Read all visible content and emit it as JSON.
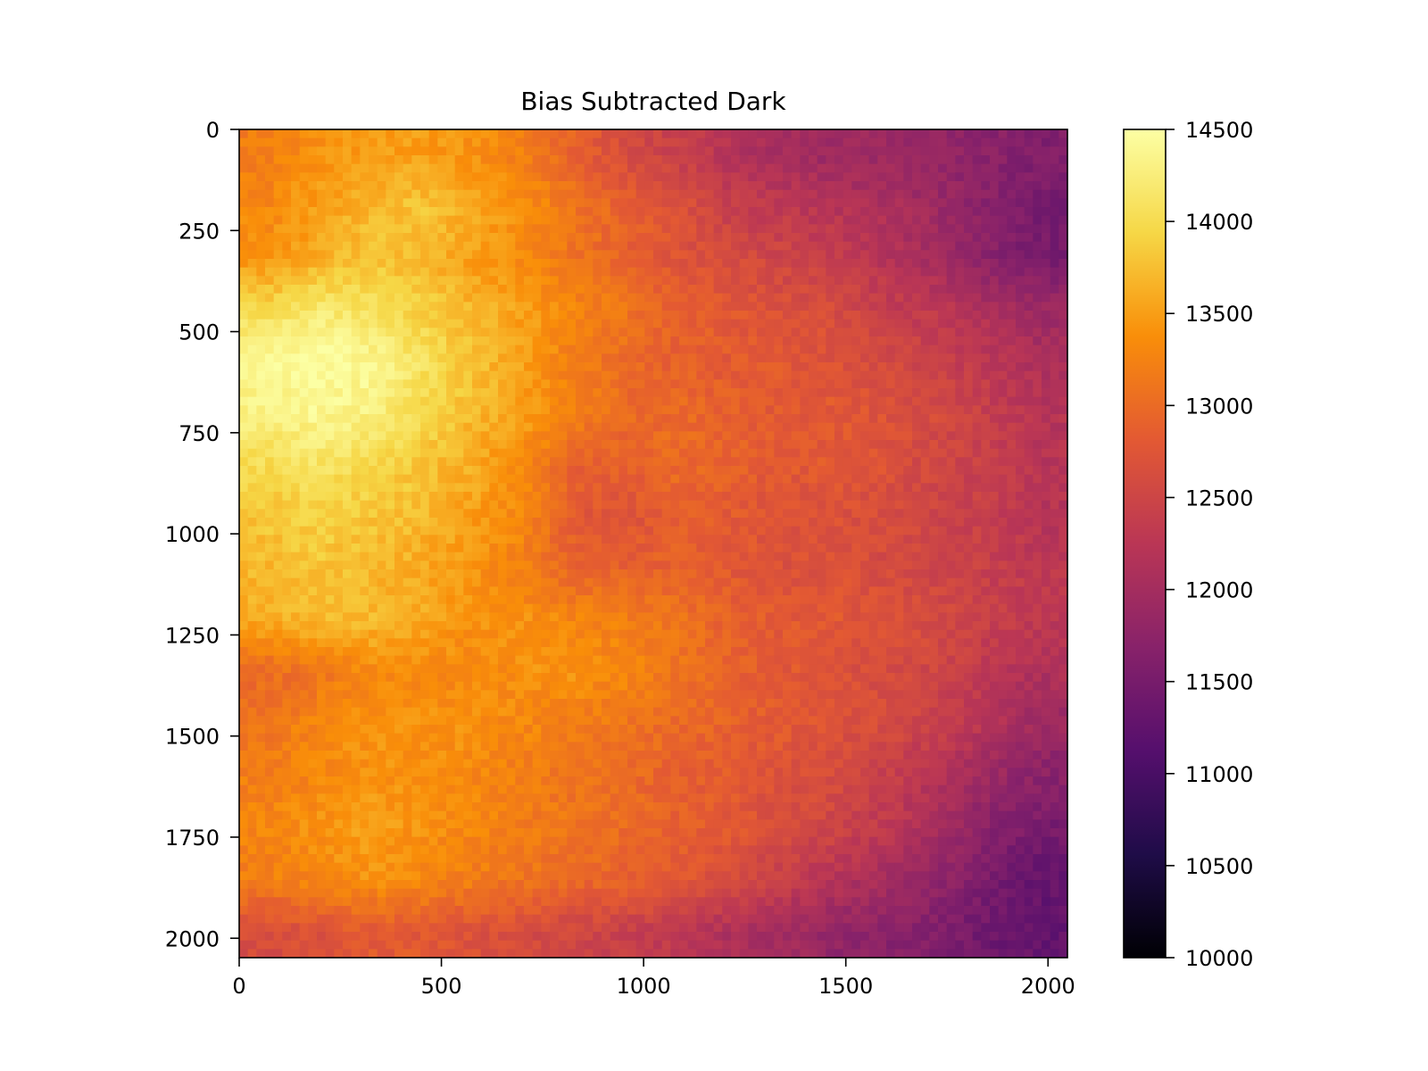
{
  "chart_data": {
    "type": "heatmap",
    "title": "Bias Subtracted Dark",
    "xlabel": "",
    "ylabel": "",
    "colormap": "inferno",
    "image_size": [
      2048,
      2048
    ],
    "x_ticks": [
      0,
      500,
      1000,
      1500,
      2000
    ],
    "y_ticks": [
      0,
      250,
      500,
      750,
      1000,
      1250,
      1500,
      1750,
      2000
    ],
    "xlim": [
      0,
      2048
    ],
    "ylim": [
      2048,
      0
    ],
    "y_inverted": true,
    "colorbar": {
      "range": [
        10000,
        14500
      ],
      "ticks": [
        10000,
        10500,
        11000,
        11500,
        12000,
        12500,
        13000,
        13500,
        14000,
        14500
      ]
    },
    "grid_resolution": 16,
    "approx_values": [
      [
        13200,
        13400,
        13500,
        13500,
        13400,
        13200,
        12900,
        12600,
        12400,
        12200,
        12000,
        11900,
        11900,
        11800,
        11700,
        11600
      ],
      [
        13300,
        13500,
        13700,
        13800,
        13600,
        13400,
        13100,
        12900,
        12700,
        12400,
        12300,
        12200,
        12100,
        11900,
        11700,
        11500
      ],
      [
        13400,
        13600,
        13800,
        13700,
        13500,
        13300,
        13100,
        12900,
        12700,
        12600,
        12500,
        12400,
        12200,
        12000,
        11700,
        11500
      ],
      [
        14000,
        14200,
        14100,
        13900,
        13700,
        13500,
        13300,
        13100,
        12900,
        12800,
        12700,
        12600,
        12400,
        12300,
        12100,
        11900
      ],
      [
        14400,
        14500,
        14400,
        14100,
        13800,
        13500,
        13200,
        13000,
        12900,
        12800,
        12800,
        12700,
        12600,
        12400,
        12300,
        12100
      ],
      [
        14300,
        14400,
        14300,
        14000,
        13700,
        13500,
        13200,
        13000,
        13000,
        12900,
        12800,
        12800,
        12700,
        12600,
        12400,
        12200
      ],
      [
        14000,
        14100,
        14000,
        13800,
        13600,
        13300,
        12900,
        12900,
        13000,
        12900,
        12800,
        12800,
        12700,
        12500,
        12400,
        12200
      ],
      [
        13800,
        13900,
        13800,
        13700,
        13500,
        13300,
        12800,
        12700,
        12900,
        12800,
        12700,
        12700,
        12600,
        12500,
        12400,
        12200
      ],
      [
        13700,
        13800,
        13700,
        13600,
        13400,
        13200,
        12900,
        12900,
        12900,
        12800,
        12700,
        12700,
        12600,
        12500,
        12400,
        12300
      ],
      [
        13600,
        13700,
        13700,
        13600,
        13400,
        13400,
        13300,
        13200,
        13100,
        12900,
        12800,
        12800,
        12700,
        12600,
        12400,
        12300
      ],
      [
        13000,
        13100,
        13300,
        13300,
        13300,
        13400,
        13400,
        13300,
        13100,
        12900,
        12800,
        12700,
        12600,
        12500,
        12300,
        12100
      ],
      [
        13100,
        13300,
        13400,
        13400,
        13400,
        13300,
        13200,
        13100,
        13000,
        12900,
        12800,
        12700,
        12600,
        12400,
        12200,
        11900
      ],
      [
        13200,
        13300,
        13400,
        13400,
        13300,
        13200,
        13100,
        13000,
        12900,
        12800,
        12700,
        12600,
        12400,
        12200,
        11900,
        11700
      ],
      [
        13300,
        13400,
        13500,
        13400,
        13300,
        13200,
        13100,
        13000,
        12900,
        12800,
        12600,
        12500,
        12300,
        12000,
        11700,
        11500
      ],
      [
        13200,
        13300,
        13400,
        13300,
        13200,
        13100,
        13000,
        12900,
        12800,
        12600,
        12400,
        12200,
        12000,
        11800,
        11500,
        11300
      ],
      [
        12600,
        12700,
        12800,
        12800,
        12700,
        12600,
        12500,
        12400,
        12300,
        12100,
        12000,
        11800,
        11700,
        11600,
        11400,
        11300
      ]
    ]
  }
}
